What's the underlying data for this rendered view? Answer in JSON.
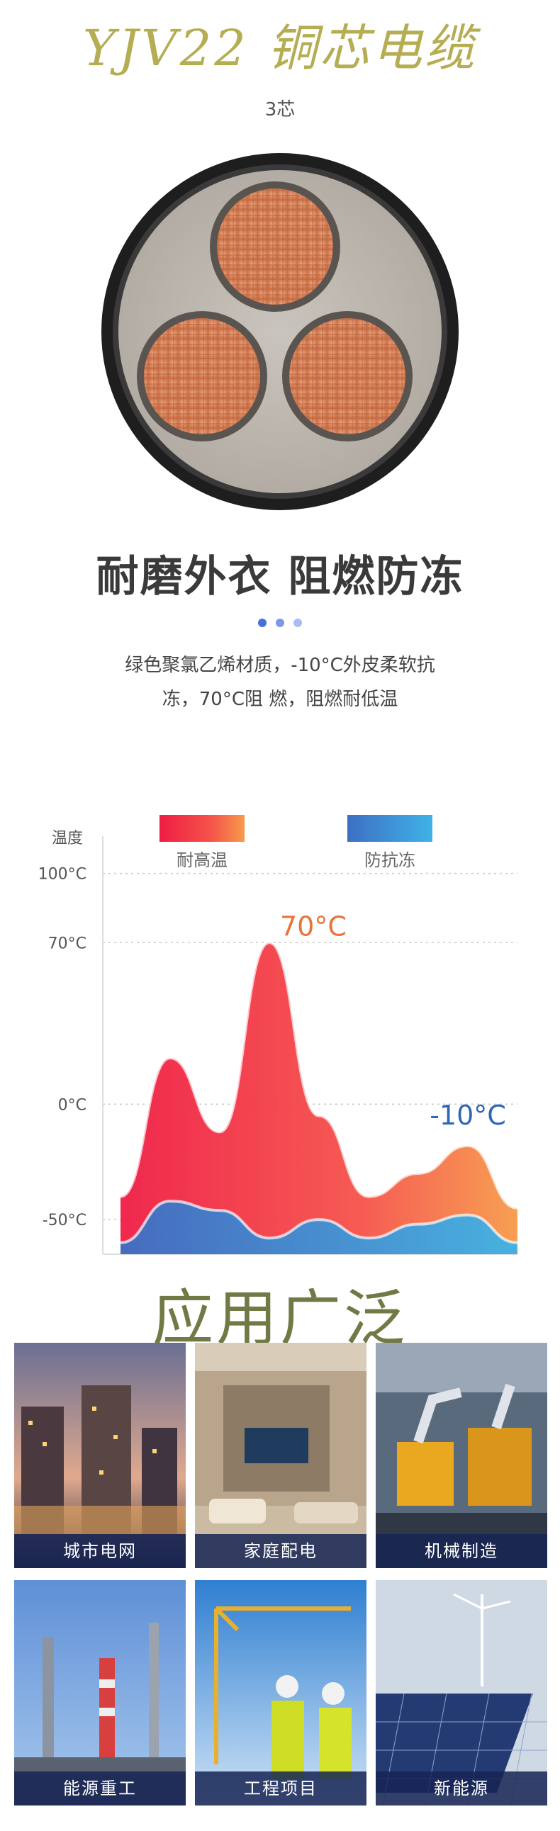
{
  "product": {
    "title": "YJV22 铜芯电缆",
    "cores": "3芯"
  },
  "feature": {
    "heading": "耐磨外衣 阻燃防冻",
    "description_line1": "绿色聚氯乙烯材质，-10°C外皮柔软抗",
    "description_line2": "冻，70°C阻 燃，阻燃耐低温",
    "dot_colors": [
      "#4a6fd8",
      "#7b97e6",
      "#a9bdf0"
    ]
  },
  "chart_data": {
    "type": "area",
    "ylabel": "温度",
    "ytick_labels": [
      "100°C",
      "70°C",
      "0°C",
      "-50°C"
    ],
    "yticks": [
      100,
      70,
      0,
      -50
    ],
    "ylim": [
      -65,
      110
    ],
    "x": [
      0,
      1,
      2,
      3,
      4,
      5,
      6,
      7,
      8
    ],
    "series": [
      {
        "name": "耐高温",
        "color_from": "#ef1d44",
        "color_to": "#f79a4a",
        "values": [
          -40,
          20,
          -12,
          70,
          -5,
          -40,
          -30,
          -18,
          -45
        ]
      },
      {
        "name": "防抗冻",
        "color_from": "#3d6fc4",
        "color_to": "#3fb2e6",
        "values": [
          -60,
          -42,
          -46,
          -58,
          -50,
          -58,
          -52,
          -48,
          -60
        ]
      }
    ],
    "annotations": [
      {
        "text": "70°C",
        "color": "#e8743a"
      },
      {
        "text": "-10°C",
        "color": "#2f67b6"
      }
    ],
    "grid": true
  },
  "applications": {
    "title": "应用广泛",
    "items": [
      {
        "label": "城市电网",
        "icon": "city-skyline"
      },
      {
        "label": "家庭配电",
        "icon": "living-room"
      },
      {
        "label": "机械制造",
        "icon": "industrial-robot"
      },
      {
        "label": "能源重工",
        "icon": "factory-chimney"
      },
      {
        "label": "工程项目",
        "icon": "construction-workers"
      },
      {
        "label": "新能源",
        "icon": "solar-wind"
      }
    ]
  }
}
